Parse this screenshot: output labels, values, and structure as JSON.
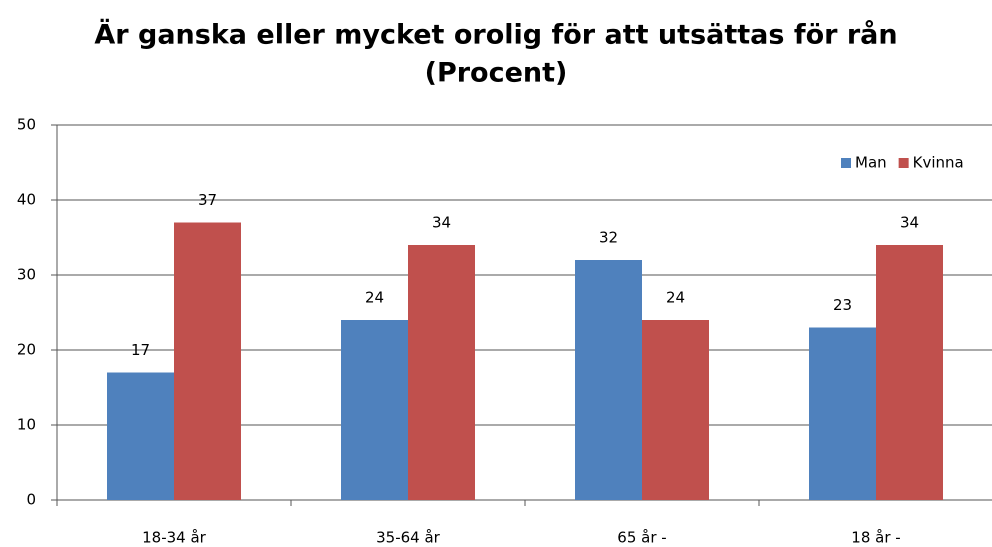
{
  "chart_data": {
    "type": "bar",
    "title": "Är ganska eller mycket orolig för att utsättas för rån",
    "subtitle": "(Procent)",
    "categories": [
      "18-34 år",
      "35-64 år",
      "65 år -",
      "18 år -"
    ],
    "series": [
      {
        "name": "Man",
        "color": "#4f81bd",
        "values": [
          17,
          24,
          32,
          23
        ]
      },
      {
        "name": "Kvinna",
        "color": "#c0504d",
        "values": [
          37,
          34,
          24,
          34
        ]
      }
    ],
    "ylim": [
      0,
      50
    ],
    "yticks": [
      0,
      10,
      20,
      30,
      40,
      50
    ],
    "grid": true,
    "legend": "top-right"
  }
}
